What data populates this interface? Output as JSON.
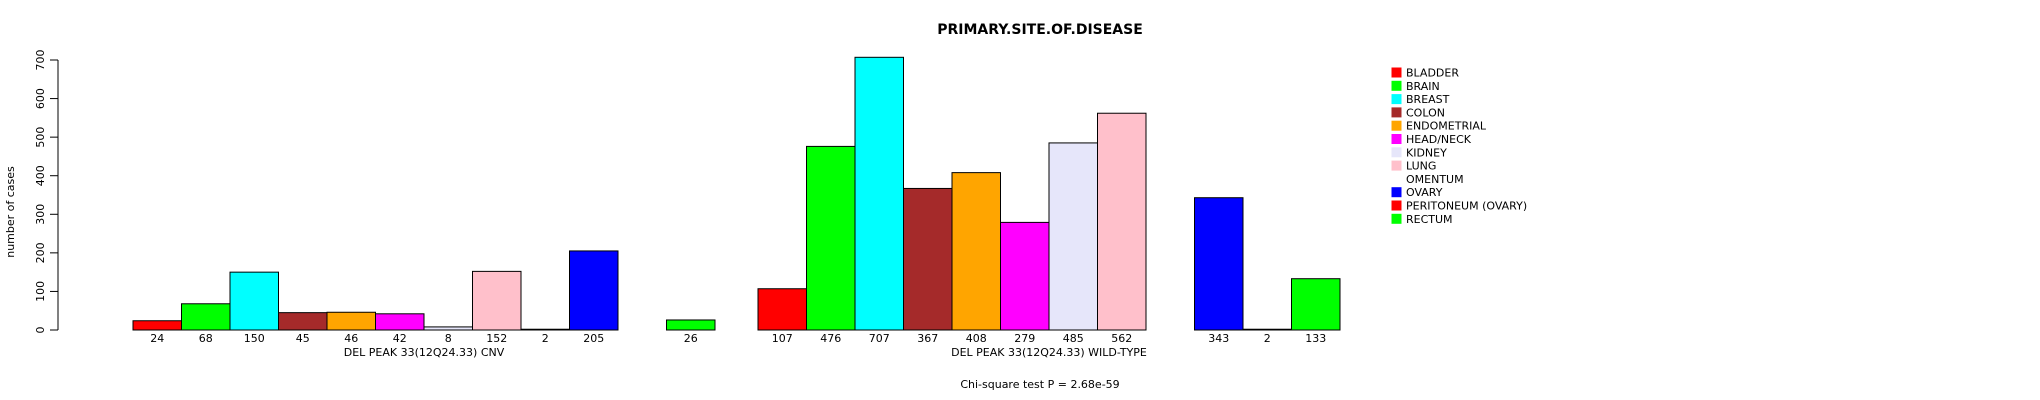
{
  "chart_data": {
    "type": "bar",
    "title": "PRIMARY.SITE.OF.DISEASE",
    "ylabel": "number of cases",
    "ylim": [
      0,
      700
    ],
    "yticks": [
      0,
      100,
      200,
      300,
      400,
      500,
      600,
      700
    ],
    "footnote": "Chi-square test P = 2.68e-59",
    "categories": [
      "BLADDER",
      "BRAIN",
      "BREAST",
      "COLON",
      "ENDOMETRIAL",
      "HEAD/NECK",
      "KIDNEY",
      "LUNG",
      "OMENTUM",
      "OVARY",
      "PERITONEUM (OVARY)",
      "RECTUM"
    ],
    "colors": [
      "#ff0000",
      "#00ff00",
      "#00ffff",
      "#a52a2a",
      "#ffa500",
      "#ff00ff",
      "#e6e6fa",
      "#ffc0cb",
      "#ffffff",
      "#0000ff",
      "#ff0000",
      "#00ff00"
    ],
    "groups": [
      {
        "name": "DEL PEAK 33(12Q24.33) CNV",
        "values": [
          24,
          68,
          150,
          45,
          46,
          42,
          8,
          152,
          2,
          205,
          0,
          26
        ],
        "labels": [
          "24",
          "68",
          "150",
          "45",
          "46",
          "42",
          "8",
          "152",
          "2",
          "205",
          "",
          "26"
        ]
      },
      {
        "name": "DEL PEAK 33(12Q24.33) WILD-TYPE",
        "values": [
          107,
          476,
          707,
          367,
          408,
          279,
          485,
          562,
          0,
          343,
          2,
          133
        ],
        "labels": [
          "107",
          "476",
          "707",
          "367",
          "408",
          "279",
          "485",
          "562",
          "",
          "343",
          "2",
          "133"
        ]
      }
    ]
  }
}
